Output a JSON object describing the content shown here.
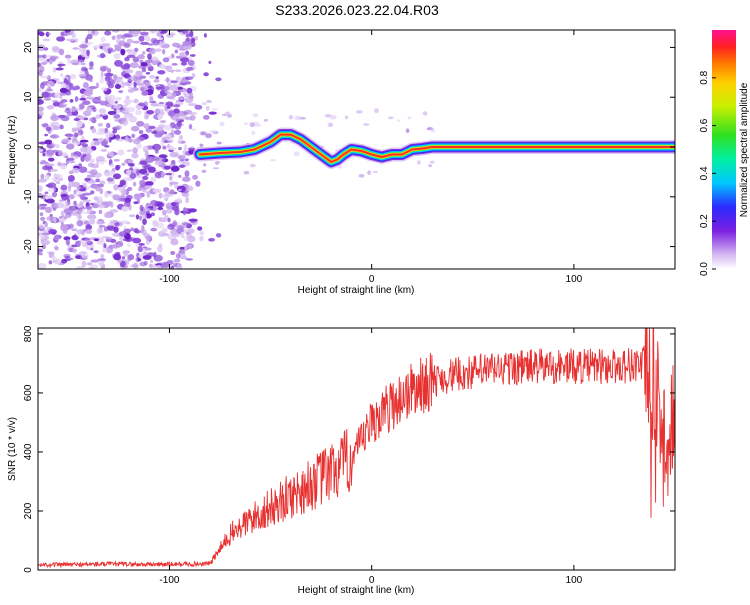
{
  "chart_data": [
    {
      "type": "heatmap",
      "title": "S233.2026.023.22.04.R03",
      "xlabel": "Height of straight line (km)",
      "ylabel": "Frequency (Hz)",
      "xlim": [
        -165,
        150
      ],
      "ylim": [
        -24.5,
        23.5
      ],
      "xticks": [
        -100,
        0,
        100
      ],
      "xtick_labels": [
        "-100",
        "0",
        "100"
      ],
      "yticks": [
        -20,
        -10,
        0,
        10,
        20
      ],
      "ytick_labels": [
        "-20",
        "-10",
        "0",
        "10",
        "20"
      ],
      "colorbar": {
        "label": "Normalized spectral amplitude",
        "range": [
          0,
          1
        ],
        "ticks": [
          0.0,
          0.2,
          0.4,
          0.6,
          0.8
        ],
        "tick_labels": [
          "0.0",
          "0.2",
          "0.4",
          "0.6",
          "0.8"
        ]
      },
      "ridge": {
        "x": [
          -85,
          -75,
          -65,
          -58,
          -50,
          -45,
          -40,
          -35,
          -30,
          -25,
          -20,
          -17,
          -14,
          -10,
          -5,
          0,
          5,
          10,
          15,
          20,
          25,
          30,
          40,
          60,
          80,
          100,
          120,
          140,
          150
        ],
        "y": [
          -1.5,
          -1.2,
          -1.0,
          -0.5,
          1.0,
          2.5,
          2.5,
          1.5,
          0.0,
          -1.5,
          -3.0,
          -2.5,
          -1.5,
          -0.5,
          -0.8,
          -1.5,
          -2.0,
          -1.5,
          -1.5,
          -0.5,
          -0.3,
          0.0,
          0.0,
          0.0,
          0.0,
          0.0,
          0.0,
          0.0,
          0.0
        ]
      }
    },
    {
      "type": "line",
      "xlabel": "Height of straight line (km)",
      "ylabel": "SNR (10 * v/v)",
      "xlim": [
        -165,
        150
      ],
      "ylim": [
        0,
        820
      ],
      "xticks": [
        -100,
        0,
        100
      ],
      "xtick_labels": [
        "-100",
        "0",
        "100"
      ],
      "yticks": [
        0,
        200,
        400,
        600,
        800
      ],
      "ytick_labels": [
        "0",
        "200",
        "400",
        "600",
        "800"
      ],
      "series": [
        {
          "name": "SNR",
          "color": "#e83030",
          "x": [
            -165,
            -150,
            -130,
            -110,
            -90,
            -80,
            -75,
            -70,
            -60,
            -50,
            -40,
            -30,
            -25,
            -20,
            -15,
            -10,
            -5,
            0,
            10,
            20,
            30,
            40,
            50,
            60,
            80,
            100,
            120,
            135,
            140,
            143,
            146,
            150
          ],
          "y": [
            18,
            18,
            20,
            19,
            20,
            22,
            70,
            120,
            170,
            210,
            250,
            290,
            310,
            330,
            350,
            380,
            430,
            500,
            560,
            610,
            640,
            660,
            670,
            680,
            690,
            690,
            690,
            700,
            650,
            500,
            420,
            560
          ]
        }
      ]
    }
  ]
}
